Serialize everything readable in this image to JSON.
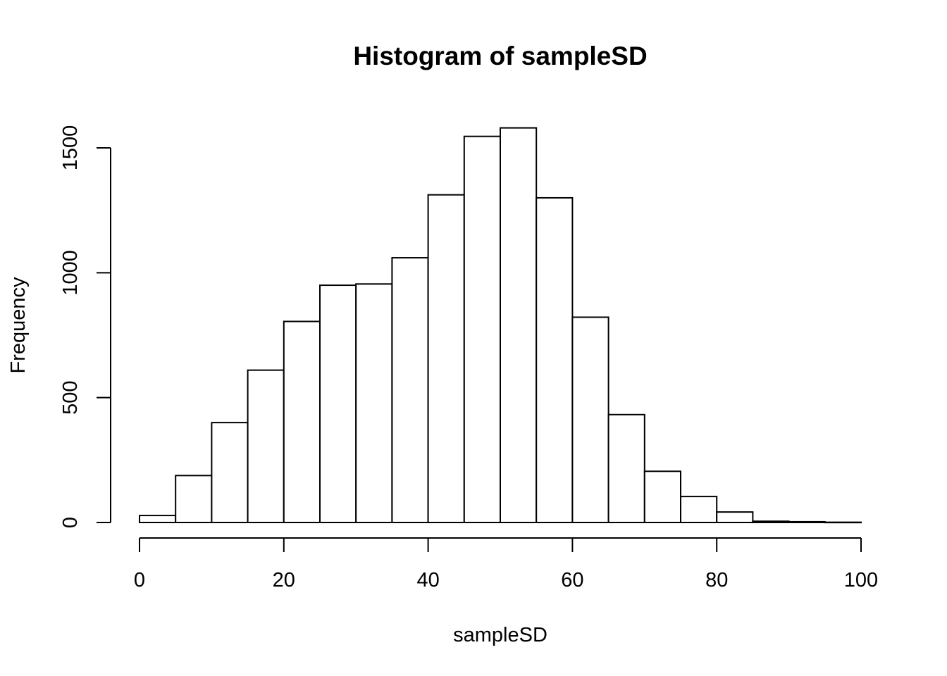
{
  "chart_data": {
    "type": "bar",
    "title": "Histogram of sampleSD",
    "xlabel": "sampleSD",
    "ylabel": "Frequency",
    "bin_edges": [
      0,
      5,
      10,
      15,
      20,
      25,
      30,
      35,
      40,
      45,
      50,
      55,
      60,
      65,
      70,
      75,
      80,
      85,
      90,
      95,
      100
    ],
    "values": [
      28,
      188,
      400,
      610,
      805,
      950,
      955,
      1060,
      1312,
      1546,
      1580,
      1300,
      822,
      432,
      205,
      104,
      42,
      5,
      3,
      1
    ],
    "xlim": [
      0,
      100
    ],
    "ylim": [
      0,
      1580
    ],
    "x_ticks": [
      "0",
      "20",
      "40",
      "60",
      "80",
      "100"
    ],
    "y_ticks": [
      "0",
      "500",
      "1000",
      "1500"
    ],
    "grid": false,
    "colors": {
      "fill": "#ffffff",
      "stroke": "#000000"
    }
  }
}
